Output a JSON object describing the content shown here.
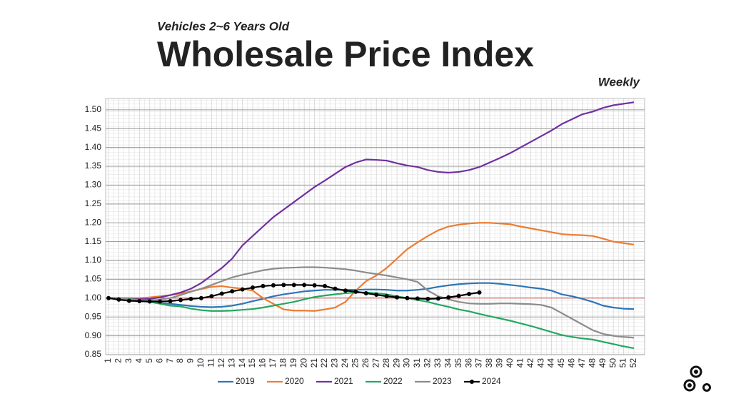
{
  "chart_data": {
    "type": "line",
    "subtitle": "Vehicles 2~6 Years Old",
    "title": "Wholesale Price Index",
    "annotation": "Weekly",
    "categories": [
      "1",
      "2",
      "3",
      "4",
      "5",
      "6",
      "7",
      "8",
      "9",
      "10",
      "11",
      "12",
      "13",
      "14",
      "15",
      "16",
      "17",
      "18",
      "19",
      "20",
      "21",
      "22",
      "23",
      "24",
      "25",
      "26",
      "27",
      "28",
      "29",
      "30",
      "31",
      "32",
      "33",
      "34",
      "35",
      "36",
      "37",
      "38",
      "39",
      "40",
      "41",
      "42",
      "43",
      "44",
      "45",
      "46",
      "47",
      "48",
      "49",
      "50",
      "51",
      "52"
    ],
    "ylim": [
      0.85,
      1.53
    ],
    "yticks": [
      0.85,
      {
        "value": 0.9,
        "label": "0.90"
      },
      0.95,
      {
        "value": 1.0,
        "label": "1.00"
      },
      1.05,
      {
        "value": 1.1,
        "label": "1.10"
      },
      1.15,
      {
        "value": 1.2,
        "label": "1.20"
      },
      1.25,
      {
        "value": 1.3,
        "label": "1.30"
      },
      1.35,
      {
        "value": 1.4,
        "label": "1.40"
      },
      1.45,
      {
        "value": 1.5,
        "label": "1.50"
      }
    ],
    "reference_line": 1.0,
    "grid": true,
    "legend": "bottom",
    "series": [
      {
        "name": "2019",
        "color": "#2e75b6",
        "values": [
          1.0,
          0.998,
          0.995,
          0.992,
          0.99,
          0.987,
          0.985,
          0.982,
          0.979,
          0.977,
          0.976,
          0.977,
          0.98,
          0.985,
          0.992,
          0.998,
          1.005,
          1.01,
          1.014,
          1.018,
          1.02,
          1.022,
          1.022,
          1.022,
          1.022,
          1.023,
          1.023,
          1.022,
          1.02,
          1.02,
          1.022,
          1.025,
          1.03,
          1.034,
          1.037,
          1.039,
          1.04,
          1.04,
          1.038,
          1.035,
          1.032,
          1.028,
          1.025,
          1.02,
          1.01,
          1.005,
          0.998,
          0.99,
          0.98,
          0.975,
          0.972,
          0.971
        ]
      },
      {
        "name": "2020",
        "color": "#ed7d31",
        "values": [
          1.0,
          1.0,
          1.0,
          1.0,
          1.002,
          1.005,
          1.008,
          1.012,
          1.018,
          1.024,
          1.03,
          1.032,
          1.028,
          1.025,
          1.02,
          1.0,
          0.985,
          0.97,
          0.967,
          0.967,
          0.966,
          0.97,
          0.975,
          0.99,
          1.02,
          1.045,
          1.06,
          1.08,
          1.105,
          1.13,
          1.148,
          1.165,
          1.18,
          1.19,
          1.195,
          1.198,
          1.2,
          1.2,
          1.198,
          1.196,
          1.19,
          1.185,
          1.18,
          1.175,
          1.17,
          1.168,
          1.167,
          1.165,
          1.158,
          1.15,
          1.146,
          1.142
        ]
      },
      {
        "name": "2021",
        "color": "#7030a0",
        "values": [
          1.0,
          1.0,
          0.998,
          0.997,
          0.998,
          1.002,
          1.008,
          1.015,
          1.025,
          1.04,
          1.06,
          1.08,
          1.105,
          1.14,
          1.165,
          1.19,
          1.215,
          1.235,
          1.255,
          1.275,
          1.295,
          1.312,
          1.33,
          1.348,
          1.36,
          1.368,
          1.367,
          1.365,
          1.358,
          1.352,
          1.348,
          1.34,
          1.335,
          1.333,
          1.335,
          1.34,
          1.348,
          1.36,
          1.372,
          1.385,
          1.4,
          1.415,
          1.43,
          1.445,
          1.462,
          1.475,
          1.488,
          1.495,
          1.505,
          1.512,
          1.516,
          1.52
        ]
      },
      {
        "name": "2022",
        "color": "#22a861",
        "values": [
          1.0,
          1.0,
          0.998,
          0.995,
          0.99,
          0.985,
          0.98,
          0.978,
          0.972,
          0.968,
          0.966,
          0.966,
          0.967,
          0.969,
          0.971,
          0.975,
          0.98,
          0.985,
          0.99,
          0.997,
          1.003,
          1.007,
          1.01,
          1.013,
          1.015,
          1.015,
          1.013,
          1.01,
          1.005,
          1.0,
          0.995,
          0.99,
          0.983,
          0.977,
          0.97,
          0.965,
          0.958,
          0.952,
          0.946,
          0.94,
          0.933,
          0.926,
          0.918,
          0.91,
          0.902,
          0.897,
          0.893,
          0.89,
          0.884,
          0.878,
          0.872,
          0.867
        ]
      },
      {
        "name": "2023",
        "color": "#8c8c8c",
        "values": [
          1.0,
          1.0,
          0.997,
          0.995,
          0.994,
          0.996,
          1.0,
          1.008,
          1.017,
          1.025,
          1.035,
          1.045,
          1.055,
          1.062,
          1.068,
          1.074,
          1.078,
          1.08,
          1.081,
          1.082,
          1.082,
          1.081,
          1.079,
          1.077,
          1.073,
          1.068,
          1.064,
          1.06,
          1.055,
          1.05,
          1.043,
          1.02,
          1.005,
          0.997,
          0.99,
          0.986,
          0.985,
          0.985,
          0.986,
          0.986,
          0.985,
          0.984,
          0.982,
          0.975,
          0.96,
          0.945,
          0.93,
          0.915,
          0.905,
          0.9,
          0.897,
          0.895
        ]
      },
      {
        "name": "2024",
        "color": "#000000",
        "markers": true,
        "values": [
          1.0,
          0.996,
          0.993,
          0.992,
          0.991,
          0.991,
          0.992,
          0.995,
          0.998,
          1.0,
          1.005,
          1.012,
          1.018,
          1.023,
          1.028,
          1.032,
          1.034,
          1.035,
          1.035,
          1.035,
          1.034,
          1.032,
          1.025,
          1.02,
          1.017,
          1.013,
          1.009,
          1.005,
          1.002,
          1.0,
          0.999,
          0.998,
          0.999,
          1.002,
          1.006,
          1.011,
          1.015,
          null,
          null,
          null,
          null,
          null,
          null,
          null,
          null,
          null,
          null,
          null,
          null,
          null,
          null,
          null
        ]
      }
    ]
  }
}
